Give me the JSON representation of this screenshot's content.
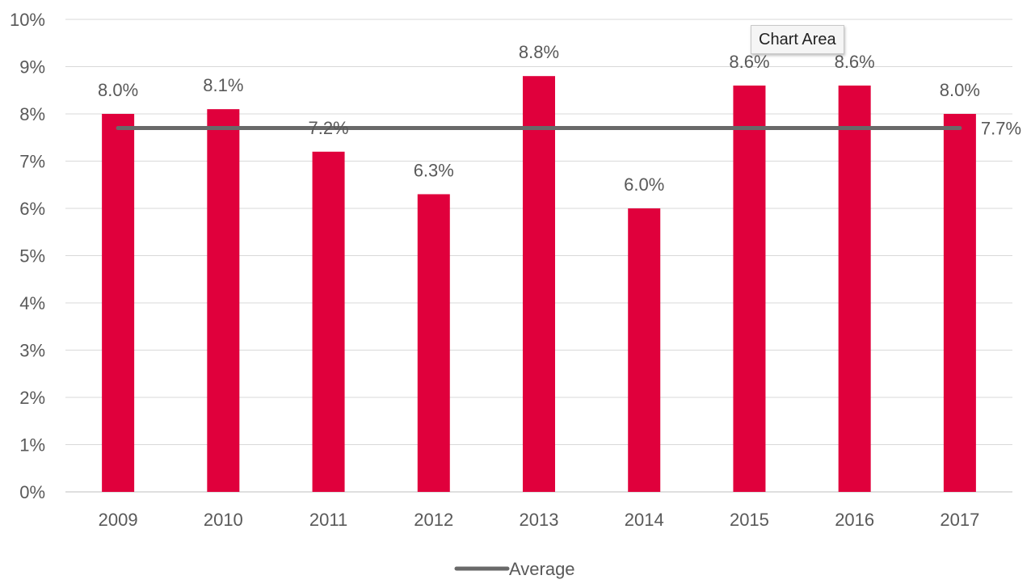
{
  "chart_data": {
    "type": "bar",
    "categories": [
      "2009",
      "2010",
      "2011",
      "2012",
      "2013",
      "2014",
      "2015",
      "2016",
      "2017"
    ],
    "series": [
      {
        "values": [
          8.0,
          8.1,
          7.2,
          6.3,
          8.8,
          6.0,
          8.6,
          8.6,
          8.0
        ],
        "labels": [
          "8.0%",
          "8.1%",
          "7.2%",
          "6.3%",
          "8.8%",
          "6.0%",
          "8.6%",
          "8.6%",
          "8.0%"
        ],
        "color": "#e0003c"
      }
    ],
    "average": {
      "name": "Average",
      "value": 7.7,
      "label": "7.7%",
      "color": "#696969"
    },
    "yticks": [
      "0%",
      "1%",
      "2%",
      "3%",
      "4%",
      "5%",
      "6%",
      "7%",
      "8%",
      "9%",
      "10%"
    ],
    "ylim": [
      0,
      10
    ],
    "grid": true,
    "legend_position": "bottom",
    "title": "",
    "xlabel": "",
    "ylabel": ""
  },
  "tooltip": {
    "text": "Chart Area"
  }
}
